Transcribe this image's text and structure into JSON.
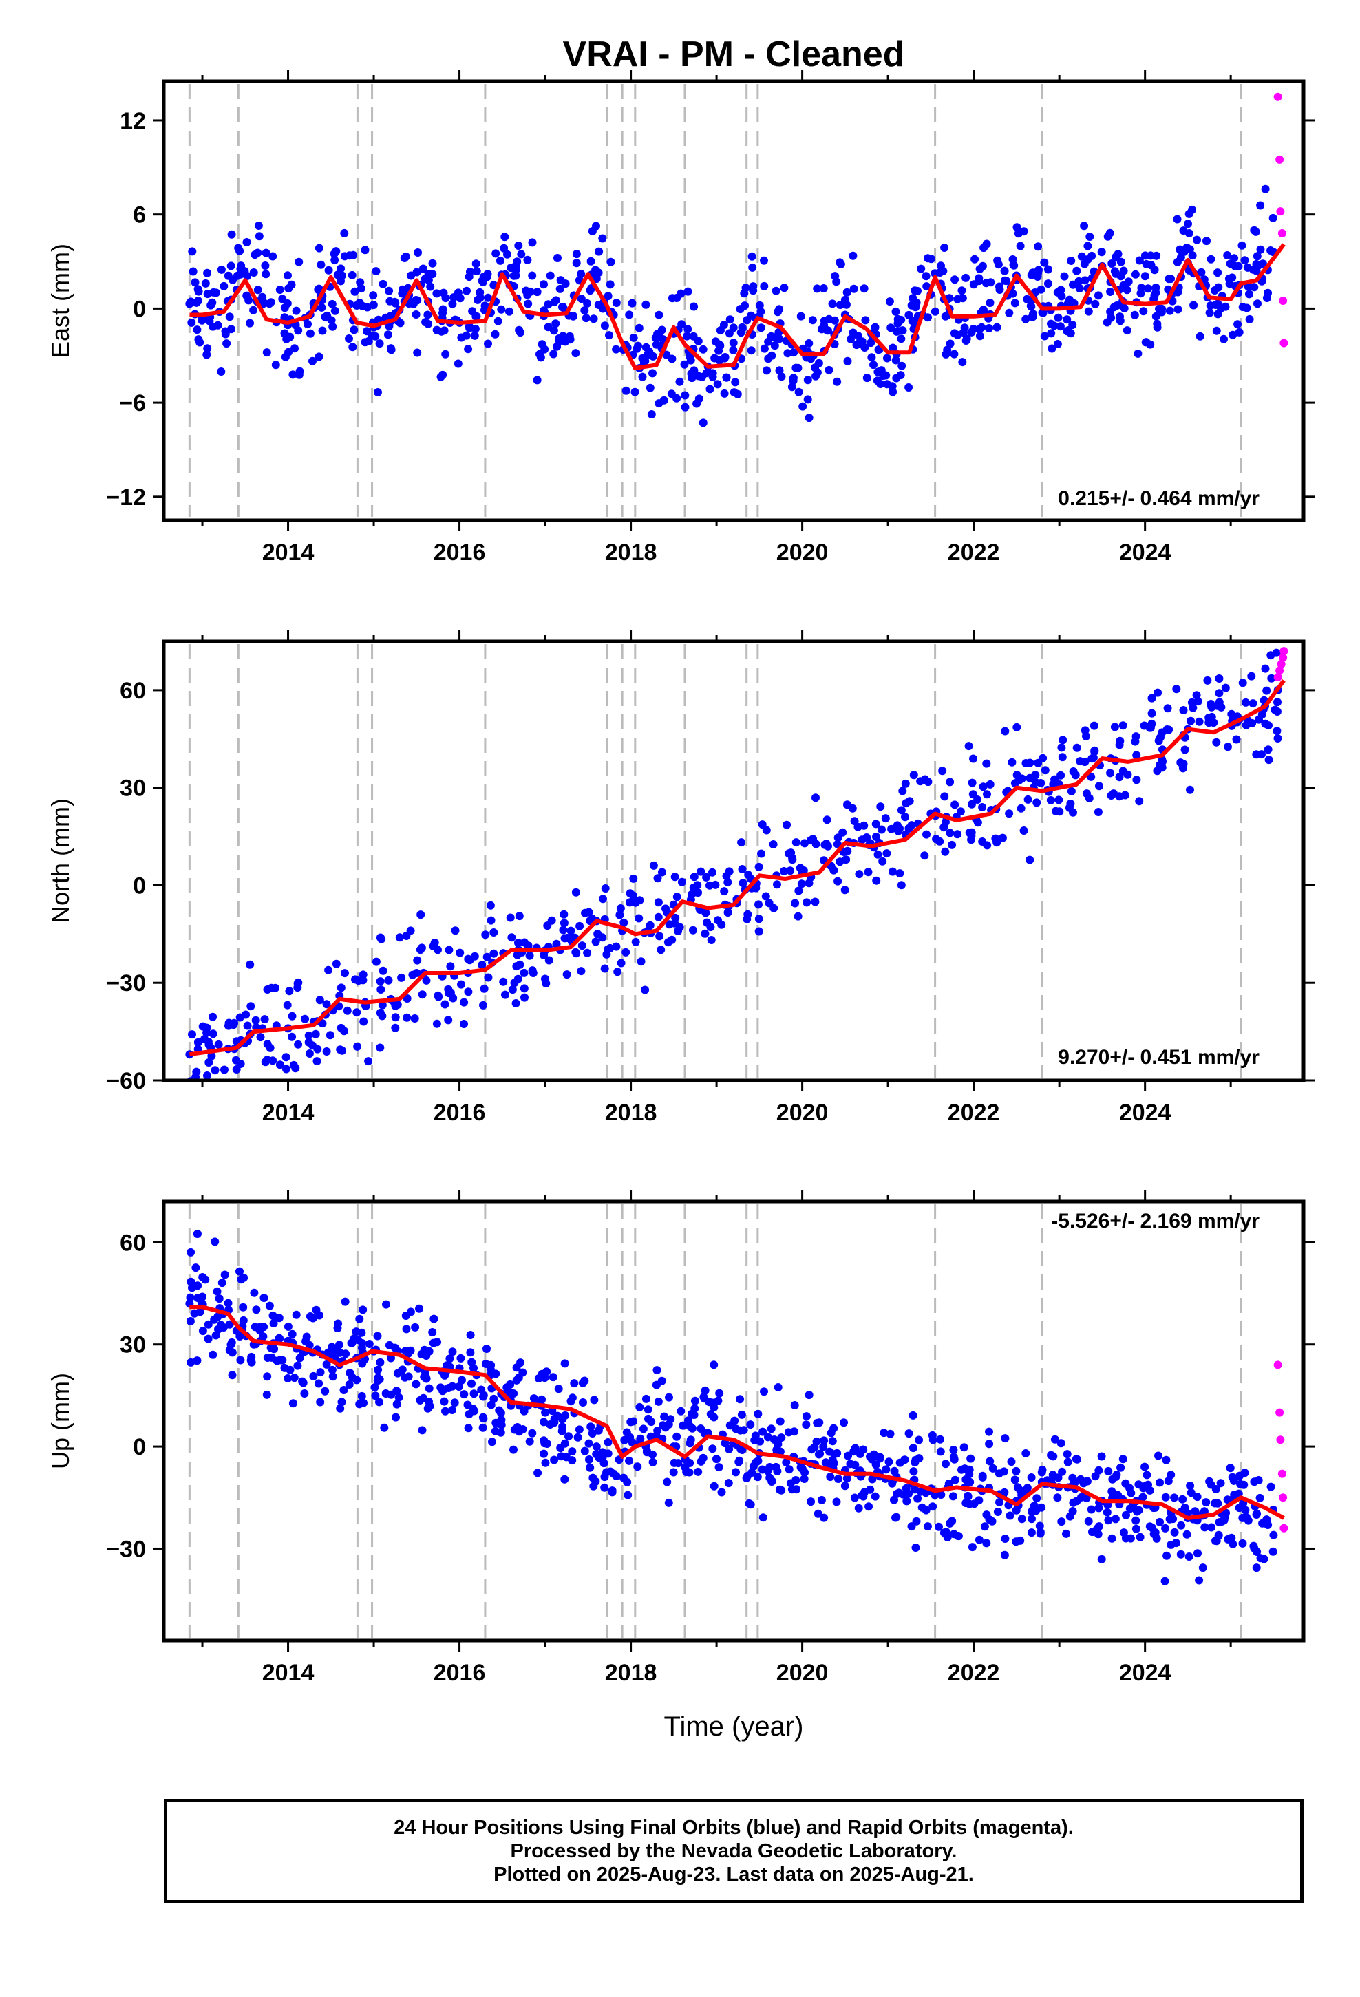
{
  "title": "VRAI  - PM - Cleaned",
  "xlabel": "Time (year)",
  "footer": {
    "line1": "24 Hour Positions Using Final Orbits (blue) and Rapid Orbits (magenta).",
    "line2": "Processed by the Nevada Geodetic Laboratory.",
    "line3": "Plotted on 2025-Aug-23. Last data on 2025-Aug-21."
  },
  "colors": {
    "final_orbits": "#0000ff",
    "rapid_orbits": "#ff00ff",
    "model": "#ff0000",
    "event_lines": "#bbbbbb"
  },
  "chart_data": [
    {
      "type": "scatter",
      "panel": "east",
      "ylabel": "East (mm)",
      "rate_label": "0.215+/- 0.464 mm/yr",
      "xlim": [
        2012.55,
        2025.85
      ],
      "ylim": [
        -13.5,
        14.5
      ],
      "xticks": [
        2014,
        2016,
        2018,
        2020,
        2022,
        2024
      ],
      "yticks": [
        -12,
        -6,
        0,
        6,
        12
      ],
      "event_lines": [
        2012.85,
        2013.42,
        2014.81,
        2014.98,
        2016.3,
        2017.72,
        2017.9,
        2018.05,
        2018.63,
        2019.35,
        2019.48,
        2021.55,
        2022.8,
        2025.12
      ],
      "series": [
        {
          "name": "Final Orbits",
          "x": [
            2012.85,
            2013.0,
            2013.2,
            2013.4,
            2013.6,
            2013.8,
            2014.0,
            2014.2,
            2014.4,
            2014.6,
            2014.8,
            2015.0,
            2015.2,
            2015.4,
            2015.6,
            2015.8,
            2016.0,
            2016.2,
            2016.4,
            2016.6,
            2016.8,
            2017.0,
            2017.2,
            2017.4,
            2017.6,
            2017.8,
            2018.1,
            2018.3,
            2018.5,
            2018.7,
            2018.9,
            2019.1,
            2019.3,
            2019.5,
            2019.7,
            2019.9,
            2020.1,
            2020.3,
            2020.5,
            2020.7,
            2020.9,
            2021.1,
            2021.3,
            2021.5,
            2021.7,
            2021.9,
            2022.1,
            2022.3,
            2022.5,
            2022.7,
            2022.9,
            2023.1,
            2023.3,
            2023.5,
            2023.7,
            2023.9,
            2024.1,
            2024.3,
            2024.5,
            2024.7,
            2024.9,
            2025.1,
            2025.3,
            2025.5
          ],
          "y": [
            0.3,
            -0.6,
            -0.2,
            1.2,
            2.3,
            0.4,
            -0.9,
            -0.6,
            0.8,
            2.1,
            0.2,
            -1.2,
            -0.8,
            1.3,
            1.9,
            -0.6,
            -0.9,
            -0.5,
            1.5,
            2.6,
            0.3,
            -0.3,
            0.1,
            1.8,
            1.9,
            -0.4,
            -3.8,
            -2.3,
            -1.6,
            -3.3,
            -3.7,
            -3.1,
            -1.2,
            -0.5,
            -1.9,
            -2.8,
            -3.2,
            -1.4,
            -0.4,
            -2.1,
            -2.6,
            -2.9,
            -1.3,
            0.9,
            -0.4,
            -0.6,
            -0.2,
            1.4,
            2.1,
            0.6,
            -0.1,
            0.3,
            1.8,
            2.7,
            1.2,
            0.4,
            0.6,
            1.9,
            2.9,
            1.4,
            0.8,
            1.5,
            2.4,
            3.6
          ]
        },
        {
          "name": "Rapid Orbits",
          "x": [
            2025.55,
            2025.57,
            2025.58,
            2025.6,
            2025.61,
            2025.62
          ],
          "y": [
            13.5,
            9.5,
            6.2,
            4.8,
            0.5,
            -2.2
          ]
        },
        {
          "name": "Model",
          "x": [
            2012.85,
            2013.0,
            2013.25,
            2013.5,
            2013.75,
            2014.0,
            2014.25,
            2014.5,
            2014.8,
            2015.0,
            2015.25,
            2015.5,
            2015.75,
            2016.0,
            2016.3,
            2016.5,
            2016.75,
            2017.0,
            2017.25,
            2017.5,
            2017.72,
            2017.9,
            2018.05,
            2018.3,
            2018.5,
            2018.63,
            2018.9,
            2019.2,
            2019.35,
            2019.48,
            2019.75,
            2020.0,
            2020.25,
            2020.5,
            2020.75,
            2021.0,
            2021.25,
            2021.55,
            2021.75,
            2022.0,
            2022.25,
            2022.5,
            2022.8,
            2023.0,
            2023.25,
            2023.5,
            2023.75,
            2024.0,
            2024.25,
            2024.5,
            2024.75,
            2025.0,
            2025.12,
            2025.3,
            2025.5,
            2025.62
          ],
          "y": [
            -0.4,
            -0.4,
            -0.2,
            1.8,
            -0.7,
            -0.9,
            -0.5,
            2.0,
            -0.9,
            -1.1,
            -0.7,
            1.8,
            -0.8,
            -0.9,
            -0.8,
            2.2,
            -0.2,
            -0.4,
            -0.3,
            2.2,
            0.2,
            -2.2,
            -3.8,
            -3.6,
            -1.2,
            -2.3,
            -3.7,
            -3.6,
            -1.8,
            -0.6,
            -1.2,
            -2.9,
            -2.9,
            -0.5,
            -1.3,
            -2.8,
            -2.8,
            2.0,
            -0.5,
            -0.5,
            -0.4,
            2.1,
            0.0,
            0.0,
            0.1,
            2.8,
            0.4,
            0.3,
            0.4,
            3.1,
            0.7,
            0.6,
            1.6,
            1.8,
            3.2,
            4.1
          ]
        }
      ]
    },
    {
      "type": "scatter",
      "panel": "north",
      "ylabel": "North (mm)",
      "rate_label": "9.270+/- 0.451 mm/yr",
      "xlim": [
        2012.55,
        2025.85
      ],
      "ylim": [
        -60,
        75
      ],
      "xticks": [
        2014,
        2016,
        2018,
        2020,
        2022,
        2024
      ],
      "yticks": [
        -60,
        -30,
        0,
        30,
        60
      ],
      "event_lines": [
        2012.85,
        2013.42,
        2014.81,
        2014.98,
        2016.3,
        2017.72,
        2017.9,
        2018.05,
        2018.63,
        2019.35,
        2019.48,
        2021.55,
        2022.8,
        2025.12
      ],
      "series": [
        {
          "name": "Final Orbits",
          "x": [
            2012.85,
            2013.1,
            2013.4,
            2013.7,
            2014.0,
            2014.3,
            2014.6,
            2014.9,
            2015.2,
            2015.5,
            2015.8,
            2016.1,
            2016.4,
            2016.7,
            2017.0,
            2017.3,
            2017.6,
            2017.9,
            2018.2,
            2018.5,
            2018.8,
            2019.1,
            2019.4,
            2019.7,
            2020.0,
            2020.3,
            2020.6,
            2020.9,
            2021.2,
            2021.5,
            2021.8,
            2022.1,
            2022.4,
            2022.7,
            2023.0,
            2023.3,
            2023.6,
            2023.9,
            2024.2,
            2024.5,
            2024.8,
            2025.1,
            2025.4,
            2025.55
          ],
          "y": [
            -52,
            -50,
            -48,
            -44,
            -44,
            -42,
            -34,
            -36,
            -35,
            -27,
            -28,
            -27,
            -21,
            -20,
            -20,
            -14,
            -11,
            -14,
            -14,
            -6,
            -7,
            -6,
            2,
            3,
            4,
            12,
            13,
            13,
            21,
            22,
            21,
            24,
            29,
            30,
            31,
            38,
            39,
            40,
            47,
            48,
            50,
            51,
            55,
            60
          ]
        },
        {
          "name": "Rapid Orbits",
          "x": [
            2025.55,
            2025.57,
            2025.59,
            2025.61,
            2025.62
          ],
          "y": [
            64,
            66,
            68,
            70,
            72
          ]
        },
        {
          "name": "Model",
          "x": [
            2012.85,
            2013.4,
            2013.6,
            2014.0,
            2014.3,
            2014.6,
            2014.9,
            2015.3,
            2015.6,
            2016.0,
            2016.3,
            2016.6,
            2017.0,
            2017.3,
            2017.6,
            2017.9,
            2018.05,
            2018.3,
            2018.6,
            2018.9,
            2019.2,
            2019.5,
            2019.8,
            2020.2,
            2020.5,
            2020.8,
            2021.2,
            2021.55,
            2021.8,
            2022.2,
            2022.5,
            2022.8,
            2023.2,
            2023.5,
            2023.8,
            2024.2,
            2024.5,
            2024.8,
            2025.12,
            2025.4,
            2025.62
          ],
          "y": [
            -52,
            -50,
            -45,
            -44,
            -43,
            -35,
            -36,
            -35,
            -27,
            -27,
            -26,
            -20,
            -20,
            -19,
            -11,
            -13,
            -15,
            -14,
            -5,
            -7,
            -6,
            3,
            2,
            4,
            13,
            12,
            14,
            22,
            20,
            22,
            30,
            29,
            31,
            39,
            38,
            40,
            48,
            47,
            51,
            55,
            63
          ]
        }
      ]
    },
    {
      "type": "scatter",
      "panel": "up",
      "ylabel": "Up (mm)",
      "rate_label": "-5.526+/- 2.169 mm/yr",
      "xlim": [
        2012.55,
        2025.85
      ],
      "ylim": [
        -57,
        72
      ],
      "xticks": [
        2014,
        2016,
        2018,
        2020,
        2022,
        2024
      ],
      "yticks": [
        -30,
        0,
        30,
        60
      ],
      "event_lines": [
        2012.85,
        2013.42,
        2014.81,
        2014.98,
        2016.3,
        2017.72,
        2017.9,
        2018.05,
        2018.63,
        2019.35,
        2019.48,
        2021.55,
        2022.8,
        2025.12
      ],
      "series": [
        {
          "name": "Final Orbits",
          "x": [
            2012.85,
            2013.0,
            2013.2,
            2013.4,
            2013.6,
            2013.8,
            2014.0,
            2014.2,
            2014.4,
            2014.6,
            2014.8,
            2015.0,
            2015.2,
            2015.4,
            2015.6,
            2015.8,
            2016.0,
            2016.2,
            2016.4,
            2016.6,
            2016.8,
            2017.0,
            2017.2,
            2017.4,
            2017.6,
            2017.8,
            2018.1,
            2018.3,
            2018.5,
            2018.7,
            2018.9,
            2019.1,
            2019.3,
            2019.5,
            2019.7,
            2019.9,
            2020.1,
            2020.3,
            2020.5,
            2020.7,
            2020.9,
            2021.1,
            2021.3,
            2021.5,
            2021.7,
            2021.9,
            2022.1,
            2022.3,
            2022.5,
            2022.7,
            2022.9,
            2023.1,
            2023.3,
            2023.5,
            2023.7,
            2023.9,
            2024.1,
            2024.3,
            2024.5,
            2024.7,
            2024.9,
            2025.1,
            2025.3,
            2025.5
          ],
          "y": [
            42,
            44,
            40,
            34,
            30,
            29,
            31,
            28,
            27,
            24,
            26,
            28,
            26,
            25,
            22,
            22,
            23,
            21,
            14,
            12,
            12,
            10,
            8,
            5,
            0,
            -8,
            1,
            3,
            0,
            2,
            4,
            1,
            -1,
            -2,
            -1,
            -3,
            -5,
            -6,
            -7,
            -8,
            -8,
            -9,
            -10,
            -13,
            -12,
            -12,
            -13,
            -14,
            -16,
            -18,
            -10,
            -12,
            -14,
            -16,
            -17,
            -16,
            -18,
            -19,
            -21,
            -20,
            -22,
            -18,
            -20,
            -26
          ]
        },
        {
          "name": "Rapid Orbits",
          "x": [
            2025.55,
            2025.57,
            2025.58,
            2025.6,
            2025.61,
            2025.62
          ],
          "y": [
            24,
            10,
            2,
            -8,
            -15,
            -24
          ]
        },
        {
          "name": "Model",
          "x": [
            2012.85,
            2013.0,
            2013.3,
            2013.42,
            2013.6,
            2014.0,
            2014.3,
            2014.6,
            2014.81,
            2014.98,
            2015.3,
            2015.6,
            2016.0,
            2016.3,
            2016.6,
            2017.0,
            2017.3,
            2017.72,
            2017.9,
            2018.05,
            2018.3,
            2018.63,
            2018.9,
            2019.2,
            2019.35,
            2019.48,
            2019.8,
            2020.2,
            2020.5,
            2020.8,
            2021.2,
            2021.55,
            2021.8,
            2022.2,
            2022.5,
            2022.8,
            2023.2,
            2023.5,
            2023.8,
            2024.2,
            2024.5,
            2024.8,
            2025.12,
            2025.4,
            2025.62
          ],
          "y": [
            41,
            41,
            39,
            35,
            31,
            30,
            28,
            24,
            26,
            28,
            27,
            23,
            22,
            21,
            13,
            12,
            11,
            6,
            -3,
            0,
            2,
            -3,
            3,
            2,
            0,
            -2,
            -3,
            -6,
            -8,
            -8,
            -10,
            -13,
            -12,
            -13,
            -17,
            -11,
            -12,
            -16,
            -16,
            -17,
            -21,
            -20,
            -15,
            -18,
            -21
          ]
        }
      ]
    }
  ]
}
